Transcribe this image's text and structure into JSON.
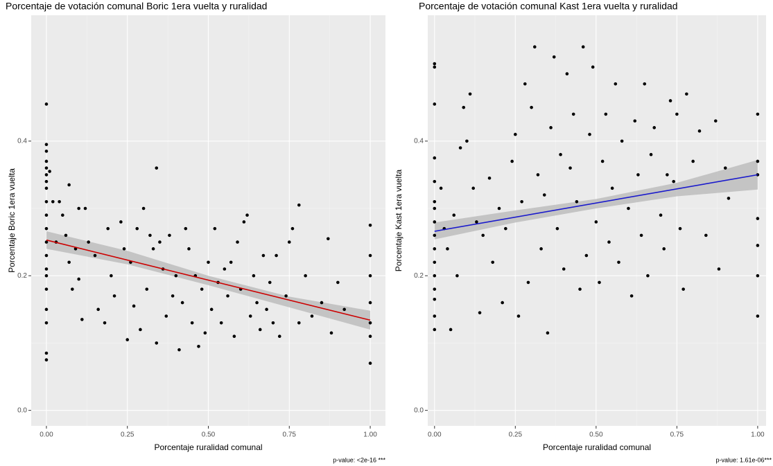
{
  "chart_data": [
    {
      "type": "scatter",
      "title": "Porcentaje de votación comunal Boric 1era vuelta y ruralidad",
      "x_label": "Porcentaje ruralidad comunal",
      "y_label": "Porcentaje Boric 1era vuelta",
      "annotation": "p-value: <2e-16 ***",
      "xlim": [
        -0.047,
        1.047
      ],
      "ylim": [
        -0.023,
        0.587
      ],
      "xticks": [
        {
          "value": 0,
          "label": "0.00"
        },
        {
          "value": 0.25,
          "label": "0.25"
        },
        {
          "value": 0.5,
          "label": "0.50"
        },
        {
          "value": 0.75,
          "label": "0.75"
        },
        {
          "value": 1,
          "label": "1.00"
        }
      ],
      "yticks": [
        {
          "value": 0,
          "label": "0.0"
        },
        0.2,
        0.4
      ],
      "grid": true,
      "point_color": "#000000",
      "x": [
        0,
        0,
        0,
        0,
        0,
        0,
        0,
        0,
        0,
        0,
        0,
        0,
        0,
        0,
        0,
        0,
        0,
        0,
        0,
        0,
        0.01,
        0.02,
        0.03,
        0.04,
        0.05,
        0.06,
        0.07,
        0.07,
        0.08,
        0.09,
        0.1,
        0.1,
        0.11,
        0.12,
        0.13,
        0.15,
        0.16,
        0.18,
        0.19,
        0.2,
        0.21,
        0.23,
        0.24,
        0.25,
        0.26,
        0.27,
        0.28,
        0.29,
        0.3,
        0.31,
        0.32,
        0.33,
        0.34,
        0.34,
        0.35,
        0.36,
        0.37,
        0.38,
        0.39,
        0.4,
        0.41,
        0.42,
        0.43,
        0.44,
        0.45,
        0.46,
        0.47,
        0.48,
        0.49,
        0.5,
        0.51,
        0.52,
        0.53,
        0.54,
        0.55,
        0.56,
        0.57,
        0.58,
        0.59,
        0.6,
        0.61,
        0.62,
        0.63,
        0.64,
        0.65,
        0.66,
        0.67,
        0.68,
        0.69,
        0.7,
        0.71,
        0.72,
        0.74,
        0.75,
        0.76,
        0.78,
        0.78,
        0.8,
        0.82,
        0.85,
        0.87,
        0.88,
        0.9,
        0.92,
        1,
        1,
        1,
        1,
        1,
        1,
        1
      ],
      "y": [
        0.455,
        0.395,
        0.385,
        0.37,
        0.36,
        0.35,
        0.34,
        0.33,
        0.31,
        0.29,
        0.27,
        0.25,
        0.23,
        0.21,
        0.2,
        0.18,
        0.15,
        0.13,
        0.085,
        0.075,
        0.355,
        0.31,
        0.25,
        0.31,
        0.29,
        0.26,
        0.335,
        0.22,
        0.18,
        0.24,
        0.3,
        0.195,
        0.135,
        0.3,
        0.25,
        0.23,
        0.15,
        0.13,
        0.27,
        0.2,
        0.17,
        0.28,
        0.24,
        0.105,
        0.22,
        0.155,
        0.27,
        0.12,
        0.3,
        0.18,
        0.26,
        0.24,
        0.36,
        0.1,
        0.25,
        0.21,
        0.14,
        0.26,
        0.17,
        0.2,
        0.09,
        0.16,
        0.27,
        0.24,
        0.13,
        0.2,
        0.095,
        0.18,
        0.115,
        0.22,
        0.15,
        0.27,
        0.19,
        0.13,
        0.21,
        0.17,
        0.22,
        0.11,
        0.25,
        0.18,
        0.28,
        0.29,
        0.14,
        0.2,
        0.16,
        0.12,
        0.23,
        0.15,
        0.19,
        0.13,
        0.23,
        0.11,
        0.17,
        0.25,
        0.27,
        0.305,
        0.13,
        0.2,
        0.14,
        0.16,
        0.255,
        0.115,
        0.19,
        0.15,
        0.275,
        0.23,
        0.2,
        0.16,
        0.13,
        0.11,
        0.07
      ],
      "fit": {
        "x": [
          0,
          1
        ],
        "y": [
          0.253,
          0.134
        ],
        "color": "#cc0000"
      },
      "band": {
        "x": [
          0,
          0.25,
          0.5,
          0.75,
          1
        ],
        "lower": [
          0.24,
          0.217,
          0.186,
          0.153,
          0.12
        ],
        "upper": [
          0.266,
          0.237,
          0.2,
          0.169,
          0.148
        ],
        "color": "#bdbdbd"
      }
    },
    {
      "type": "scatter",
      "title": "Porcentaje de votación comunal Kast 1era vuelta y ruralidad",
      "x_label": "Porcentaje ruralidad comunal",
      "y_label": "Porcentaje Kast 1era vuelta",
      "annotation": "p-value: 1.61e-06***",
      "xlim": [
        -0.021,
        1.026
      ],
      "ylim": [
        -0.023,
        0.587
      ],
      "xticks": [
        {
          "value": 0,
          "label": "0.00"
        },
        {
          "value": 0.25,
          "label": "0.25"
        },
        {
          "value": 0.5,
          "label": "0.50"
        },
        {
          "value": 0.75,
          "label": "0.75"
        },
        {
          "value": 1,
          "label": "1.00"
        }
      ],
      "yticks": [
        {
          "value": 0,
          "label": "0.0"
        },
        0.2,
        0.4
      ],
      "grid": true,
      "point_color": "#000000",
      "x": [
        0,
        0,
        0,
        0,
        0,
        0,
        0,
        0,
        0,
        0,
        0,
        0,
        0,
        0,
        0,
        0,
        0.02,
        0.03,
        0.04,
        0.05,
        0.06,
        0.07,
        0.08,
        0.09,
        0.1,
        0.11,
        0.12,
        0.13,
        0.14,
        0.15,
        0.17,
        0.18,
        0.2,
        0.21,
        0.22,
        0.24,
        0.25,
        0.26,
        0.27,
        0.28,
        0.29,
        0.3,
        0.31,
        0.32,
        0.33,
        0.34,
        0.35,
        0.36,
        0.37,
        0.38,
        0.39,
        0.4,
        0.41,
        0.42,
        0.43,
        0.44,
        0.45,
        0.46,
        0.47,
        0.48,
        0.49,
        0.5,
        0.51,
        0.52,
        0.53,
        0.54,
        0.55,
        0.56,
        0.57,
        0.58,
        0.6,
        0.61,
        0.62,
        0.63,
        0.64,
        0.65,
        0.66,
        0.67,
        0.68,
        0.7,
        0.71,
        0.72,
        0.73,
        0.74,
        0.75,
        0.76,
        0.77,
        0.78,
        0.8,
        0.82,
        0.84,
        0.87,
        0.88,
        0.9,
        0.91,
        1,
        1,
        1,
        1,
        1,
        1,
        1
      ],
      "y": [
        0.515,
        0.51,
        0.455,
        0.375,
        0.34,
        0.31,
        0.3,
        0.28,
        0.26,
        0.24,
        0.22,
        0.2,
        0.18,
        0.165,
        0.14,
        0.12,
        0.33,
        0.27,
        0.24,
        0.12,
        0.29,
        0.2,
        0.39,
        0.45,
        0.4,
        0.47,
        0.33,
        0.28,
        0.145,
        0.26,
        0.345,
        0.22,
        0.3,
        0.16,
        0.27,
        0.37,
        0.41,
        0.14,
        0.31,
        0.485,
        0.19,
        0.45,
        0.54,
        0.35,
        0.24,
        0.32,
        0.115,
        0.42,
        0.525,
        0.27,
        0.38,
        0.21,
        0.5,
        0.36,
        0.44,
        0.31,
        0.18,
        0.54,
        0.23,
        0.41,
        0.51,
        0.28,
        0.19,
        0.37,
        0.44,
        0.25,
        0.33,
        0.485,
        0.22,
        0.4,
        0.3,
        0.17,
        0.43,
        0.35,
        0.26,
        0.485,
        0.2,
        0.38,
        0.42,
        0.29,
        0.24,
        0.35,
        0.46,
        0.34,
        0.44,
        0.27,
        0.18,
        0.47,
        0.37,
        0.415,
        0.26,
        0.43,
        0.21,
        0.36,
        0.315,
        0.44,
        0.37,
        0.35,
        0.285,
        0.245,
        0.2,
        0.14
      ],
      "fit": {
        "x": [
          0,
          1
        ],
        "y": [
          0.266,
          0.35
        ],
        "color": "#1a1acc"
      },
      "band": {
        "x": [
          0,
          0.25,
          0.5,
          0.75,
          1
        ],
        "lower": [
          0.254,
          0.279,
          0.3,
          0.318,
          0.328
        ],
        "upper": [
          0.279,
          0.297,
          0.314,
          0.338,
          0.372
        ],
        "color": "#bdbdbd"
      }
    }
  ]
}
